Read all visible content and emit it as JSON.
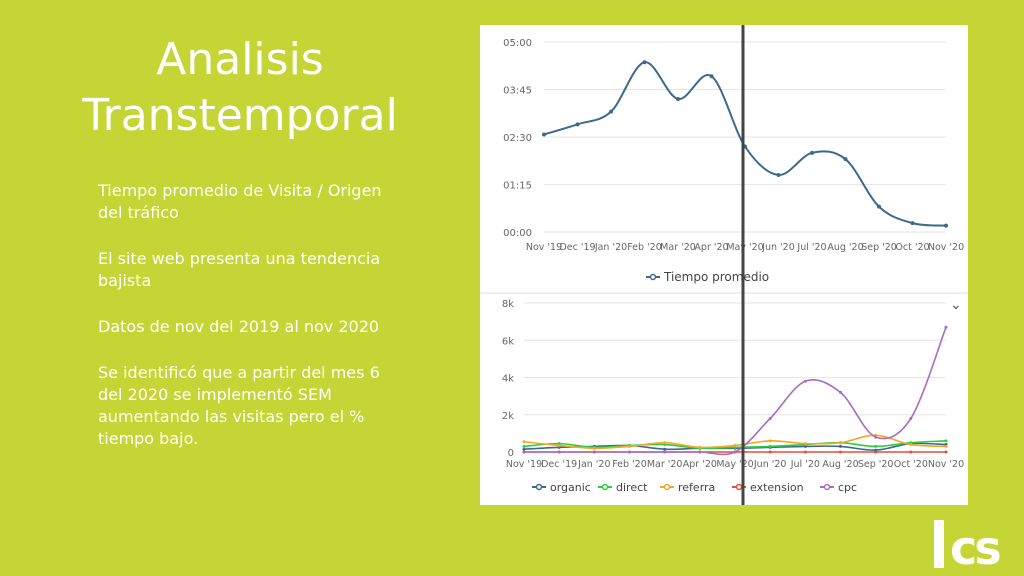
{
  "slide": {
    "title_line1": "Analisis",
    "title_line2": "Transtemporal",
    "paragraphs": [
      "Tiempo promedio de Visita / Origen del tráfico",
      "El site web presenta una tendencia bajista",
      "Datos de nov del 2019 al nov 2020",
      "Se identificó que a partir del mes 6 del 2020 se implementó SEM aumentando las visitas pero el % tiempo bajo."
    ],
    "logo_text": "ics"
  },
  "colors": {
    "background": "#c5d535",
    "line_main": "#3b6a8c",
    "organic": "#3b6a8c",
    "direct": "#2ecc40",
    "referral": "#f5a623",
    "extension": "#e74c3c",
    "cpc": "#a86cc1",
    "marker": "#444444"
  },
  "chart_data": [
    {
      "type": "line",
      "categories": [
        "Nov '19",
        "Dec '19",
        "Jan '20",
        "Feb '20",
        "Mar '20",
        "Apr '20",
        "May '20",
        "Jun '20",
        "Jul '20",
        "Aug '20",
        "Sep '20",
        "Oct '20",
        "Nov '20"
      ],
      "y_tick_labels": [
        "00:00",
        "01:15",
        "02:30",
        "03:45",
        "05:00"
      ],
      "ylim_seconds": [
        0,
        300
      ],
      "series": [
        {
          "name": "Tiempo promedio",
          "values_seconds": [
            154,
            170,
            190,
            268,
            210,
            246,
            135,
            90,
            125,
            115,
            40,
            14,
            10
          ]
        }
      ],
      "legend": "bottom",
      "grid": true
    },
    {
      "type": "line",
      "categories": [
        "Nov '19",
        "Dec '19",
        "Jan '20",
        "Feb '20",
        "Mar '20",
        "Apr '20",
        "May '20",
        "Jun '20",
        "Jul '20",
        "Aug '20",
        "Sep '20",
        "Oct '20",
        "Nov '20"
      ],
      "y_tick_labels": [
        "0",
        "2k",
        "4k",
        "6k",
        "8k"
      ],
      "ylim": [
        0,
        8000
      ],
      "series": [
        {
          "name": "organic",
          "values": [
            150,
            250,
            300,
            350,
            150,
            200,
            200,
            250,
            300,
            300,
            100,
            450,
            400
          ]
        },
        {
          "name": "direct",
          "values": [
            300,
            450,
            250,
            350,
            400,
            200,
            250,
            300,
            400,
            500,
            300,
            500,
            600
          ]
        },
        {
          "name": "referral",
          "values": [
            550,
            350,
            200,
            300,
            500,
            250,
            350,
            600,
            450,
            500,
            900,
            400,
            300
          ]
        },
        {
          "name": "extension",
          "values": [
            0,
            0,
            0,
            0,
            0,
            0,
            0,
            0,
            0,
            0,
            0,
            0,
            0
          ]
        },
        {
          "name": "cpc",
          "values": [
            0,
            0,
            0,
            0,
            0,
            0,
            0,
            1800,
            3800,
            3200,
            800,
            1800,
            6700
          ]
        }
      ],
      "legend": "bottom",
      "legend_labels": [
        "organic",
        "direct",
        "referra",
        "extension",
        "cpc"
      ],
      "grid": true
    }
  ]
}
